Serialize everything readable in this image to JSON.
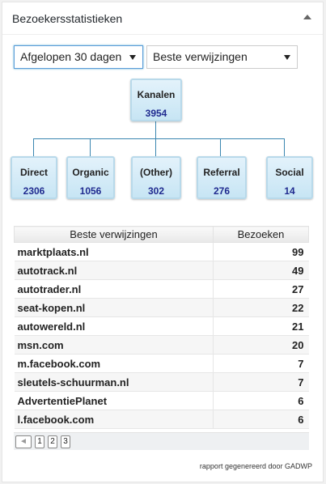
{
  "widget": {
    "title": "Bezoekersstatistieken",
    "period_select": "Afgelopen 30 dagen",
    "report_select": "Beste verwijzingen"
  },
  "chart": {
    "root": {
      "label": "Kanalen",
      "value": "3954"
    },
    "children": [
      {
        "label": "Direct",
        "value": "2306"
      },
      {
        "label": "Organic",
        "value": "1056"
      },
      {
        "label": "(Other)",
        "value": "302"
      },
      {
        "label": "Referral",
        "value": "276"
      },
      {
        "label": "Social",
        "value": "14"
      }
    ]
  },
  "table": {
    "headers": [
      "Beste verwijzingen",
      "Bezoeken"
    ],
    "rows": [
      [
        "marktplaats.nl",
        "99"
      ],
      [
        "autotrack.nl",
        "49"
      ],
      [
        "autotrader.nl",
        "27"
      ],
      [
        "seat-kopen.nl",
        "22"
      ],
      [
        "autowereld.nl",
        "21"
      ],
      [
        "msn.com",
        "20"
      ],
      [
        "m.facebook.com",
        "7"
      ],
      [
        "sleutels-schuurman.nl",
        "7"
      ],
      [
        "AdvertentiePlanet",
        "6"
      ],
      [
        "l.facebook.com",
        "6"
      ]
    ]
  },
  "pager": {
    "pages": [
      "1",
      "2",
      "3"
    ]
  },
  "footer": "rapport gegenereerd door GADWP",
  "colors": {
    "node_value": "#1f2a8f",
    "connector": "#3a86b0",
    "focus": "#5b9dd9"
  }
}
